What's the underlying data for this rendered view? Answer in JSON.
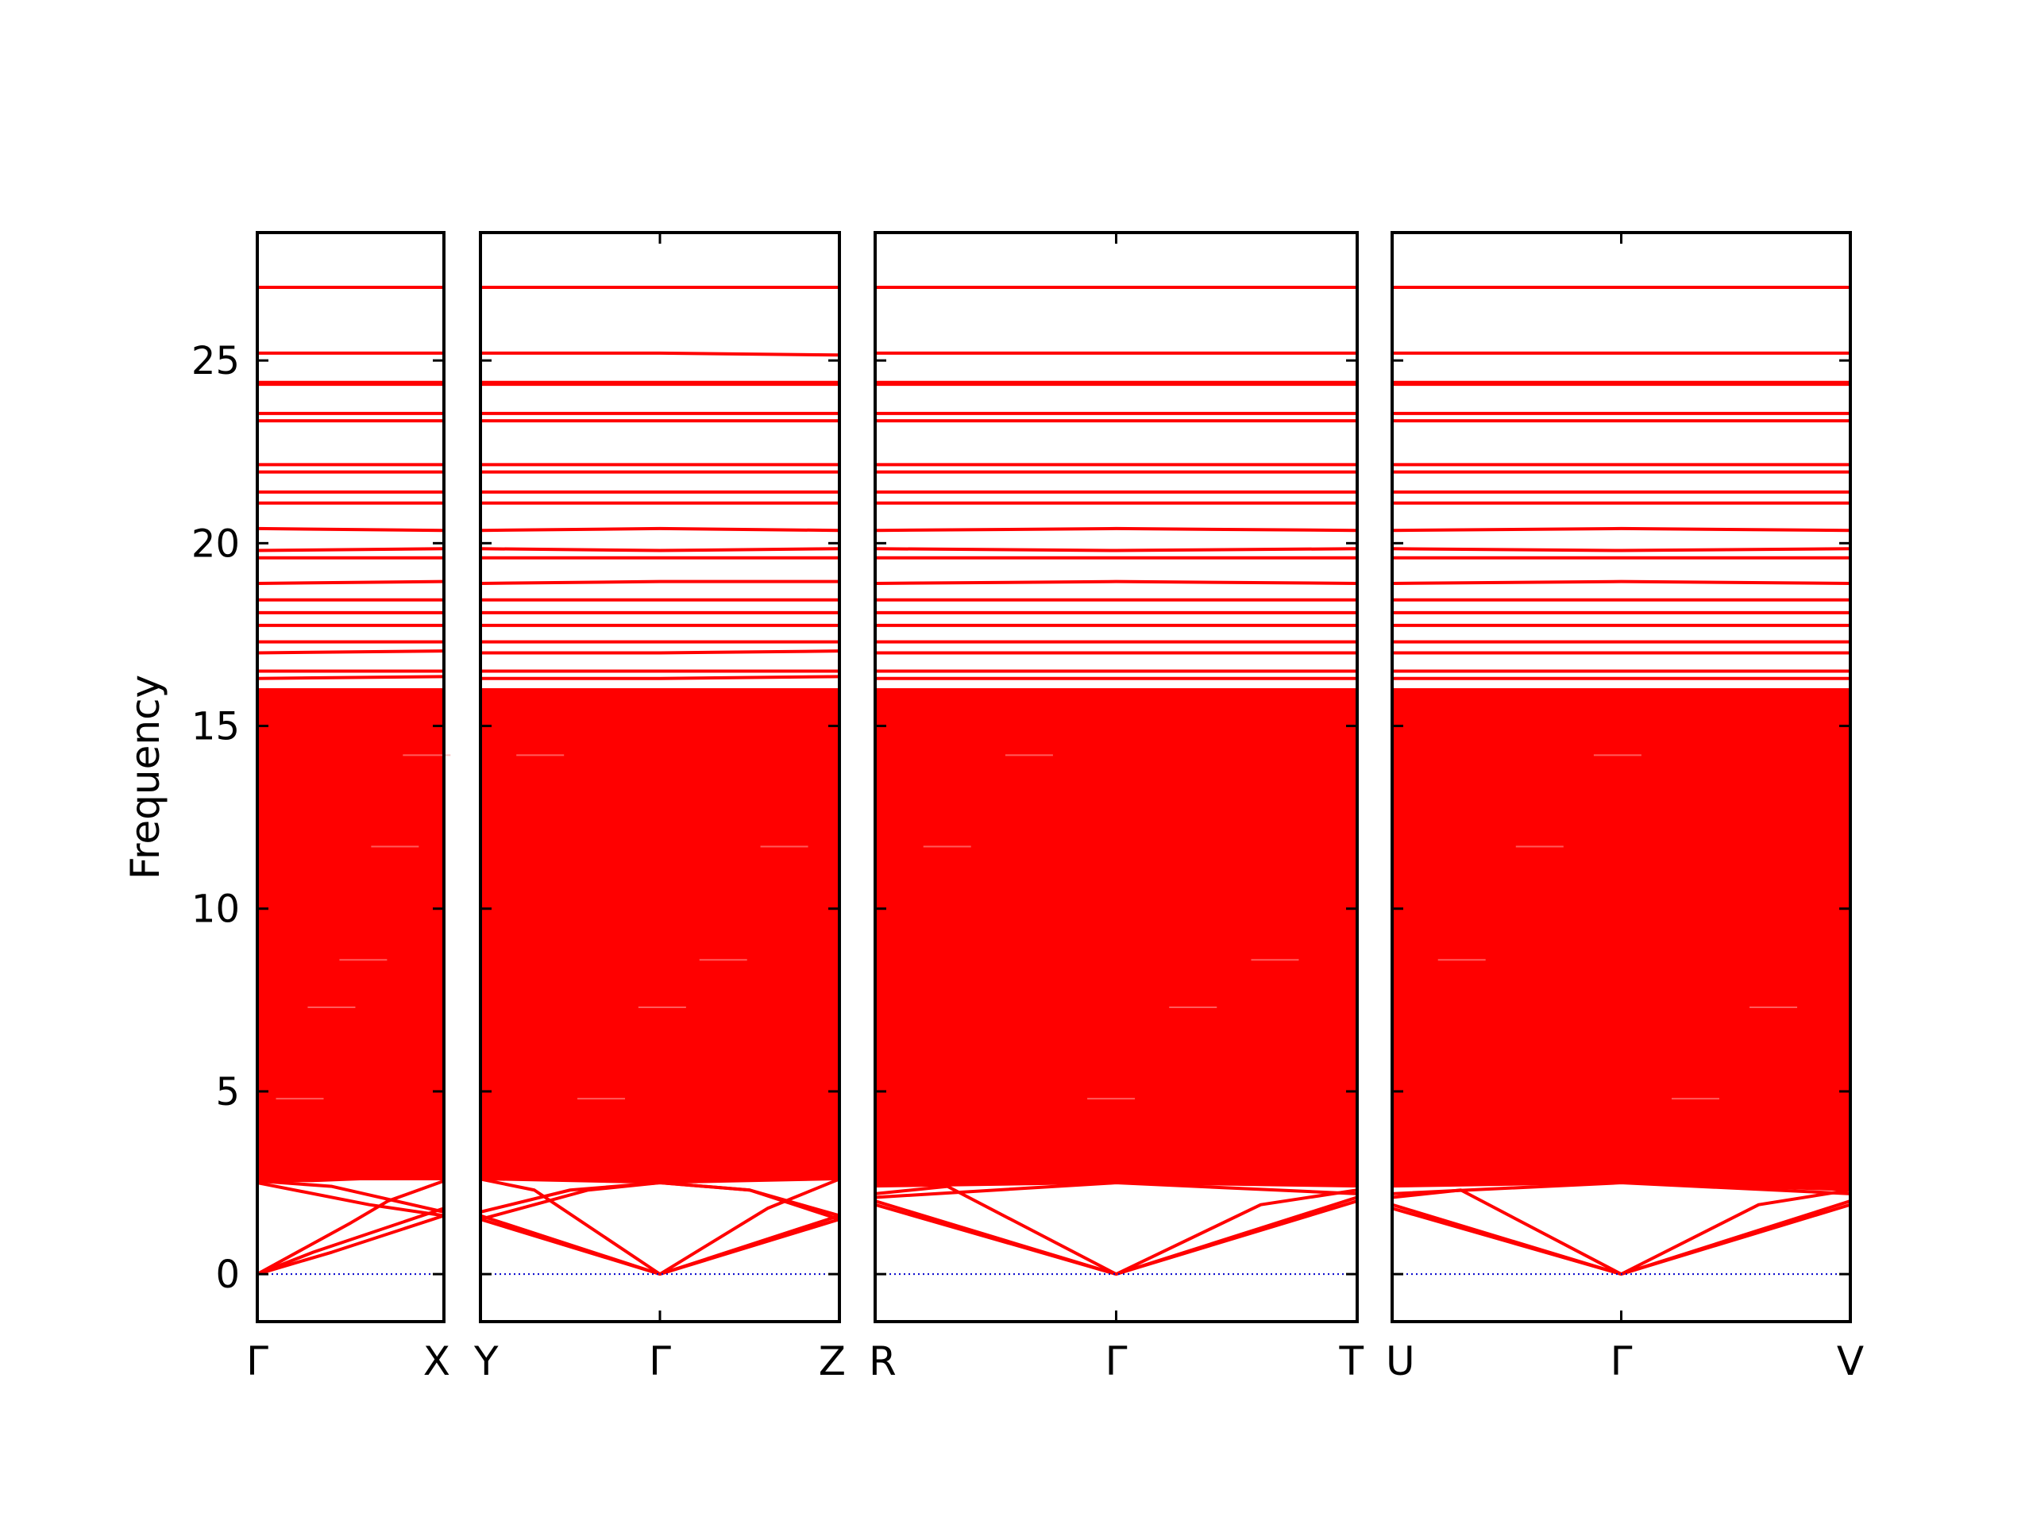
{
  "chart_data": {
    "type": "line",
    "title": "",
    "xlabel": "",
    "ylabel": "Frequency",
    "ylim": [
      -1.3,
      28.5
    ],
    "yticks": [
      0,
      5,
      10,
      15,
      20,
      25
    ],
    "ytick_labels": [
      "0",
      "5",
      "10",
      "15",
      "20",
      "25"
    ],
    "grid": false,
    "legend": "none",
    "colors": {
      "bands": "#ff0000",
      "zero_line": "#0000cc",
      "axes": "#000000"
    },
    "dense_band_range": [
      2.6,
      16.0
    ],
    "panels": [
      {
        "labels": [
          "Γ",
          "X"
        ],
        "xrange": [
          0,
          1
        ],
        "dense_band": {
          "top": [
            [
              0,
              16.0
            ],
            [
              1,
              16.0
            ]
          ],
          "bottom": [
            [
              0,
              2.55
            ],
            [
              0.3,
              2.55
            ],
            [
              0.55,
              2.6
            ],
            [
              1,
              2.6
            ]
          ]
        },
        "acoustic_branches": [
          [
            [
              0,
              0
            ],
            [
              0.4,
              0.6
            ],
            [
              1,
              1.6
            ]
          ],
          [
            [
              0,
              0
            ],
            [
              0.3,
              0.6
            ],
            [
              1,
              1.8
            ]
          ],
          [
            [
              0,
              0
            ],
            [
              0.5,
              1.4
            ],
            [
              0.7,
              2.0
            ],
            [
              1,
              2.55
            ]
          ],
          [
            [
              0,
              2.5
            ],
            [
              0.6,
              1.9
            ],
            [
              1,
              1.6
            ]
          ],
          [
            [
              0,
              2.55
            ],
            [
              0.4,
              2.4
            ],
            [
              1,
              1.7
            ]
          ]
        ],
        "flat_bands": [
          {
            "values": [
              16.3,
              16.35
            ]
          },
          {
            "values": [
              16.5,
              16.5
            ]
          },
          {
            "values": [
              17.0,
              17.05
            ]
          },
          {
            "values": [
              17.3,
              17.3
            ]
          },
          {
            "values": [
              17.75,
              17.75
            ]
          },
          {
            "values": [
              18.1,
              18.1
            ]
          },
          {
            "values": [
              18.45,
              18.45
            ]
          },
          {
            "values": [
              18.9,
              18.95
            ]
          },
          {
            "values": [
              19.6,
              19.6
            ]
          },
          {
            "values": [
              19.8,
              19.85
            ]
          },
          {
            "values": [
              20.4,
              20.35
            ]
          },
          {
            "values": [
              21.1,
              21.1
            ]
          },
          {
            "values": [
              21.4,
              21.4
            ]
          },
          {
            "values": [
              21.95,
              21.95
            ]
          },
          {
            "values": [
              22.15,
              22.15
            ]
          },
          {
            "values": [
              23.35,
              23.35
            ]
          },
          {
            "values": [
              23.55,
              23.55
            ]
          },
          {
            "values": [
              24.35,
              24.35
            ]
          },
          {
            "values": [
              24.4,
              24.4
            ]
          },
          {
            "values": [
              25.2,
              25.2
            ]
          },
          {
            "values": [
              27.0,
              27.0
            ]
          }
        ]
      },
      {
        "labels": [
          "Y",
          "Γ",
          "Z"
        ],
        "xrange": [
          0,
          2
        ],
        "dense_band": {
          "top": [
            [
              0,
              16.0
            ],
            [
              2,
              16.0
            ]
          ],
          "bottom": [
            [
              0,
              2.6
            ],
            [
              1,
              2.5
            ],
            [
              2,
              2.6
            ]
          ]
        },
        "acoustic_branches": [
          [
            [
              0,
              1.5
            ],
            [
              1,
              0
            ],
            [
              2,
              1.5
            ]
          ],
          [
            [
              0,
              1.6
            ],
            [
              1,
              0
            ],
            [
              2,
              1.6
            ]
          ],
          [
            [
              0,
              1.7
            ],
            [
              0.5,
              2.3
            ],
            [
              1,
              2.5
            ],
            [
              1.5,
              2.3
            ],
            [
              2,
              1.6
            ]
          ],
          [
            [
              0,
              2.6
            ],
            [
              0.3,
              2.3
            ],
            [
              1,
              0
            ]
          ],
          [
            [
              1,
              0
            ],
            [
              1.6,
              1.8
            ],
            [
              2,
              2.6
            ]
          ],
          [
            [
              0,
              1.5
            ],
            [
              0.6,
              2.3
            ],
            [
              1,
              2.5
            ],
            [
              1.5,
              2.3
            ],
            [
              2,
              1.5
            ]
          ]
        ],
        "flat_bands": [
          {
            "values": [
              16.3,
              16.3,
              16.35
            ]
          },
          {
            "values": [
              16.5,
              16.5,
              16.5
            ]
          },
          {
            "values": [
              17.0,
              17.0,
              17.05
            ]
          },
          {
            "values": [
              17.3,
              17.3,
              17.3
            ]
          },
          {
            "values": [
              17.75,
              17.75,
              17.75
            ]
          },
          {
            "values": [
              18.1,
              18.1,
              18.1
            ]
          },
          {
            "values": [
              18.45,
              18.45,
              18.45
            ]
          },
          {
            "values": [
              18.9,
              18.95,
              18.95
            ]
          },
          {
            "values": [
              19.6,
              19.6,
              19.6
            ]
          },
          {
            "values": [
              19.85,
              19.8,
              19.85
            ]
          },
          {
            "values": [
              20.35,
              20.4,
              20.35
            ]
          },
          {
            "values": [
              21.1,
              21.1,
              21.1
            ]
          },
          {
            "values": [
              21.4,
              21.4,
              21.4
            ]
          },
          {
            "values": [
              21.95,
              21.95,
              21.95
            ]
          },
          {
            "values": [
              22.15,
              22.15,
              22.15
            ]
          },
          {
            "values": [
              23.35,
              23.35,
              23.35
            ]
          },
          {
            "values": [
              23.55,
              23.55,
              23.55
            ]
          },
          {
            "values": [
              24.35,
              24.35,
              24.35
            ]
          },
          {
            "values": [
              24.4,
              24.4,
              24.4
            ]
          },
          {
            "values": [
              25.2,
              25.2,
              25.15
            ]
          },
          {
            "values": [
              27.0,
              27.0,
              27.0
            ]
          }
        ]
      },
      {
        "labels": [
          "R",
          "Γ",
          "T"
        ],
        "xrange": [
          0,
          2
        ],
        "dense_band": {
          "top": [
            [
              0,
              16.0
            ],
            [
              2,
              16.0
            ]
          ],
          "bottom": [
            [
              0,
              2.4
            ],
            [
              1,
              2.5
            ],
            [
              2,
              2.4
            ]
          ]
        },
        "acoustic_branches": [
          [
            [
              0,
              1.9
            ],
            [
              1,
              0
            ],
            [
              2,
              2.0
            ]
          ],
          [
            [
              0,
              2.0
            ],
            [
              1,
              0
            ],
            [
              2,
              2.1
            ]
          ],
          [
            [
              0,
              2.2
            ],
            [
              0.3,
              2.4
            ],
            [
              1,
              0
            ]
          ],
          [
            [
              1,
              0
            ],
            [
              1.6,
              1.9
            ],
            [
              2,
              2.3
            ]
          ],
          [
            [
              0,
              2.1
            ],
            [
              1,
              2.5
            ],
            [
              2,
              2.2
            ]
          ]
        ],
        "flat_bands": [
          {
            "values": [
              16.3,
              16.3,
              16.3
            ]
          },
          {
            "values": [
              16.5,
              16.5,
              16.5
            ]
          },
          {
            "values": [
              17.0,
              17.0,
              17.0
            ]
          },
          {
            "values": [
              17.3,
              17.3,
              17.3
            ]
          },
          {
            "values": [
              17.75,
              17.75,
              17.75
            ]
          },
          {
            "values": [
              18.1,
              18.1,
              18.1
            ]
          },
          {
            "values": [
              18.45,
              18.45,
              18.45
            ]
          },
          {
            "values": [
              18.9,
              18.95,
              18.9
            ]
          },
          {
            "values": [
              19.6,
              19.6,
              19.6
            ]
          },
          {
            "values": [
              19.85,
              19.8,
              19.85
            ]
          },
          {
            "values": [
              20.35,
              20.4,
              20.35
            ]
          },
          {
            "values": [
              21.1,
              21.1,
              21.1
            ]
          },
          {
            "values": [
              21.4,
              21.4,
              21.4
            ]
          },
          {
            "values": [
              21.95,
              21.95,
              21.95
            ]
          },
          {
            "values": [
              22.15,
              22.15,
              22.15
            ]
          },
          {
            "values": [
              23.35,
              23.35,
              23.35
            ]
          },
          {
            "values": [
              23.55,
              23.55,
              23.55
            ]
          },
          {
            "values": [
              24.35,
              24.35,
              24.35
            ]
          },
          {
            "values": [
              24.4,
              24.4,
              24.4
            ]
          },
          {
            "values": [
              25.2,
              25.2,
              25.2
            ]
          },
          {
            "values": [
              27.0,
              27.0,
              27.0
            ]
          }
        ]
      },
      {
        "labels": [
          "U",
          "Γ",
          "V"
        ],
        "xrange": [
          0,
          2
        ],
        "dense_band": {
          "top": [
            [
              0,
              16.0
            ],
            [
              2,
              16.0
            ]
          ],
          "bottom": [
            [
              0,
              2.4
            ],
            [
              1,
              2.5
            ],
            [
              2,
              2.3
            ]
          ]
        },
        "acoustic_branches": [
          [
            [
              0,
              1.8
            ],
            [
              1,
              0
            ],
            [
              2,
              1.9
            ]
          ],
          [
            [
              0,
              1.9
            ],
            [
              1,
              0
            ],
            [
              2,
              2.0
            ]
          ],
          [
            [
              0,
              2.1
            ],
            [
              0.3,
              2.3
            ],
            [
              1,
              0
            ]
          ],
          [
            [
              1,
              0
            ],
            [
              1.6,
              1.9
            ],
            [
              2,
              2.3
            ]
          ],
          [
            [
              0,
              2.2
            ],
            [
              1,
              2.5
            ],
            [
              2,
              2.2
            ]
          ]
        ],
        "flat_bands": [
          {
            "values": [
              16.3,
              16.3,
              16.3
            ]
          },
          {
            "values": [
              16.5,
              16.5,
              16.5
            ]
          },
          {
            "values": [
              17.0,
              17.0,
              17.0
            ]
          },
          {
            "values": [
              17.3,
              17.3,
              17.3
            ]
          },
          {
            "values": [
              17.75,
              17.75,
              17.75
            ]
          },
          {
            "values": [
              18.1,
              18.1,
              18.1
            ]
          },
          {
            "values": [
              18.45,
              18.45,
              18.45
            ]
          },
          {
            "values": [
              18.9,
              18.95,
              18.9
            ]
          },
          {
            "values": [
              19.6,
              19.6,
              19.6
            ]
          },
          {
            "values": [
              19.85,
              19.8,
              19.85
            ]
          },
          {
            "values": [
              20.35,
              20.4,
              20.35
            ]
          },
          {
            "values": [
              21.1,
              21.1,
              21.1
            ]
          },
          {
            "values": [
              21.4,
              21.4,
              21.4
            ]
          },
          {
            "values": [
              21.95,
              21.95,
              21.95
            ]
          },
          {
            "values": [
              22.15,
              22.15,
              22.15
            ]
          },
          {
            "values": [
              23.35,
              23.35,
              23.35
            ]
          },
          {
            "values": [
              23.55,
              23.55,
              23.55
            ]
          },
          {
            "values": [
              24.35,
              24.35,
              24.35
            ]
          },
          {
            "values": [
              24.4,
              24.4,
              24.4
            ]
          },
          {
            "values": [
              25.2,
              25.2,
              25.2
            ]
          },
          {
            "values": [
              27.0,
              27.0,
              27.0
            ]
          }
        ]
      }
    ]
  }
}
